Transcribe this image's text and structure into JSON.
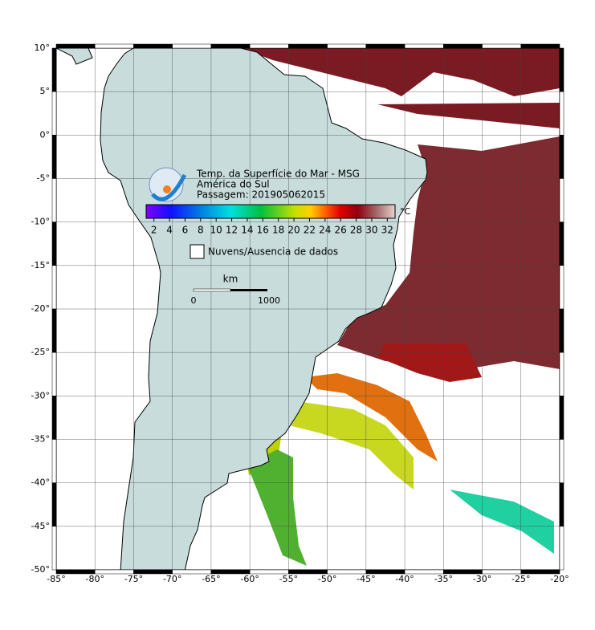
{
  "map": {
    "lon_ticks": [
      {
        "value": -85,
        "label": "-85°"
      },
      {
        "value": -80,
        "label": "-80°"
      },
      {
        "value": -75,
        "label": "-75°"
      },
      {
        "value": -70,
        "label": "-70°"
      },
      {
        "value": -65,
        "label": "-65°"
      },
      {
        "value": -60,
        "label": "-60°"
      },
      {
        "value": -55,
        "label": "-55°"
      },
      {
        "value": -50,
        "label": "-50°"
      },
      {
        "value": -45,
        "label": "-45°"
      },
      {
        "value": -40,
        "label": "-40°"
      },
      {
        "value": -35,
        "label": "-35°"
      },
      {
        "value": -30,
        "label": "-30°"
      },
      {
        "value": -25,
        "label": "-25°"
      },
      {
        "value": -20,
        "label": "-20°"
      }
    ],
    "lat_ticks": [
      {
        "value": 10,
        "label": "10°"
      },
      {
        "value": 5,
        "label": "5°"
      },
      {
        "value": 0,
        "label": "0°"
      },
      {
        "value": -5,
        "label": "-5°"
      },
      {
        "value": -10,
        "label": "-10°"
      },
      {
        "value": -15,
        "label": "-15°"
      },
      {
        "value": -20,
        "label": "-20°"
      },
      {
        "value": -25,
        "label": "-25°"
      },
      {
        "value": -30,
        "label": "-30°"
      },
      {
        "value": -35,
        "label": "-35°"
      },
      {
        "value": -40,
        "label": "-40°"
      },
      {
        "value": -45,
        "label": "-45°"
      },
      {
        "value": -50,
        "label": "-50°"
      }
    ],
    "grid": true
  },
  "legend": {
    "title": "Temp. da Superfície do Mar - MSG",
    "subtitle": "América do Sul",
    "pass": "Passagem: 201905062015",
    "colorbar": {
      "lim": [
        1,
        33
      ],
      "ticks": [
        2,
        4,
        6,
        8,
        10,
        12,
        14,
        16,
        18,
        20,
        22,
        24,
        26,
        28,
        30,
        32
      ],
      "unit": "°C"
    },
    "no_data": "Nuvens/Ausencia de dados"
  },
  "scale_bar": {
    "unit": "km",
    "labels": [
      "0",
      "1000"
    ]
  }
}
